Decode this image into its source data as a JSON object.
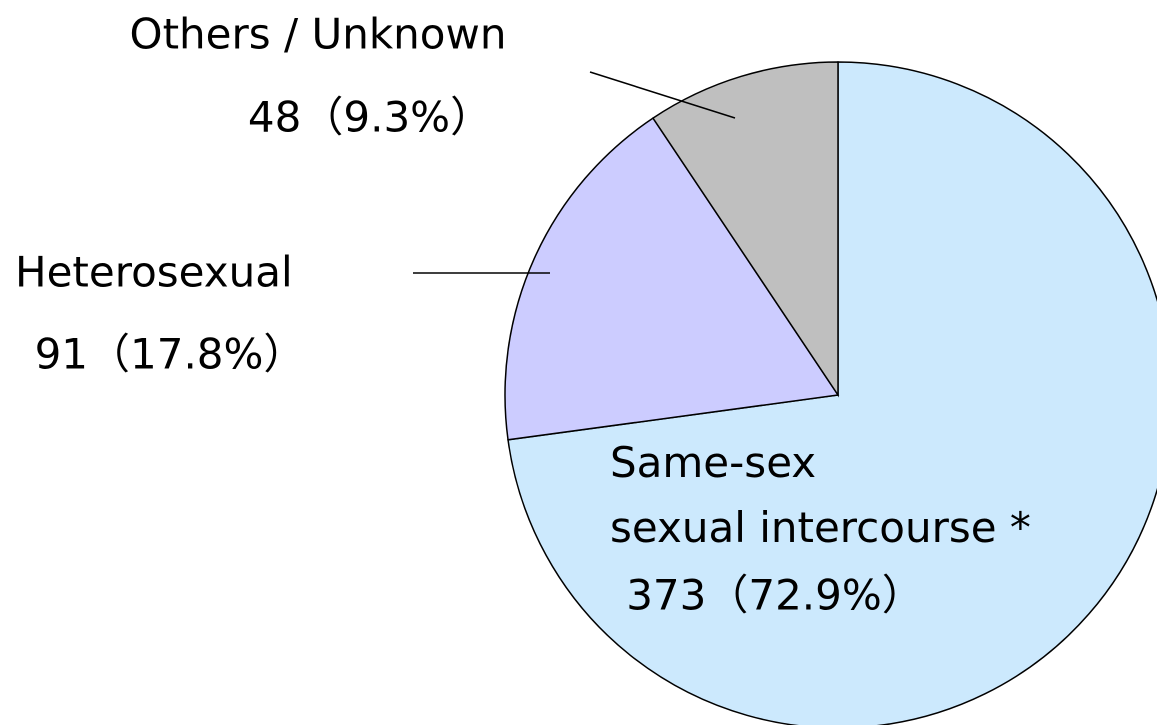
{
  "chart_data": {
    "type": "pie",
    "categories": [
      "Same-sex\nsexual intercourse *",
      "Heterosexual",
      "Others / Unknown"
    ],
    "values": [
      373,
      91,
      48
    ],
    "value_labels": [
      "373（72.9%）",
      "91（17.8%）",
      "48（9.3%）"
    ],
    "colors": [
      "#cce9fd",
      "#ccccff",
      "#bfbfbf"
    ]
  }
}
